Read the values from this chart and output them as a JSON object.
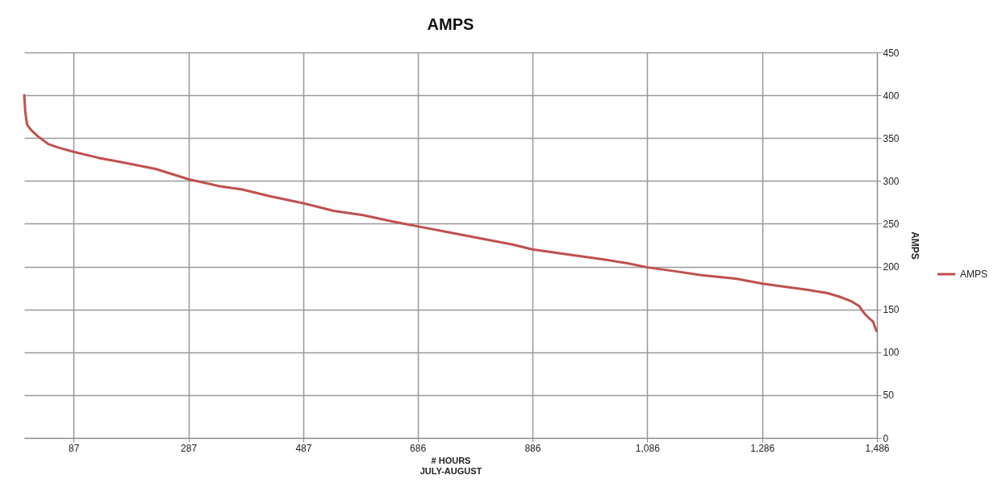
{
  "chart_data": {
    "type": "line",
    "title": "AMPS",
    "xlabel": "# HOURS\nJULY-AUGUST",
    "ylabel": "AMPS",
    "xlim": [
      1,
      1486
    ],
    "xticks": [
      87,
      287,
      487,
      686,
      886,
      {
        "value": 1086,
        "label": "1,086"
      },
      {
        "value": 1286,
        "label": "1,286"
      },
      {
        "value": 1486,
        "label": "1,486"
      }
    ],
    "ylim": [
      0,
      450
    ],
    "yticks": [
      0,
      50,
      100,
      150,
      200,
      250,
      300,
      350,
      400,
      450
    ],
    "grid": true,
    "legend": "right",
    "marker": "none",
    "line_style": "solid",
    "series": [
      {
        "name": "AMPS",
        "color": "#c0504d",
        "x": [
          1,
          2,
          3,
          6,
          10,
          15,
          25,
          43,
          60,
          87,
          130,
          170,
          230,
          287,
          340,
          381,
          430,
          487,
          540,
          591,
          640,
          686,
          740,
          802,
          850,
          886,
          950,
          1013,
          1050,
          1087,
          1130,
          1181,
          1240,
          1287,
          1330,
          1364,
          1400,
          1420,
          1440,
          1455,
          1462,
          1466,
          1472,
          1479,
          1485
        ],
        "values": [
          400,
          390,
          380,
          366,
          362,
          358,
          352,
          343,
          339,
          334,
          327,
          322,
          314,
          302,
          294,
          290,
          282,
          274,
          265,
          260,
          253,
          247,
          240,
          232,
          226,
          220,
          214,
          208,
          204,
          199,
          195,
          190,
          186,
          180,
          176,
          173,
          169,
          165,
          160,
          154,
          147,
          144,
          140,
          136,
          125
        ]
      }
    ]
  }
}
